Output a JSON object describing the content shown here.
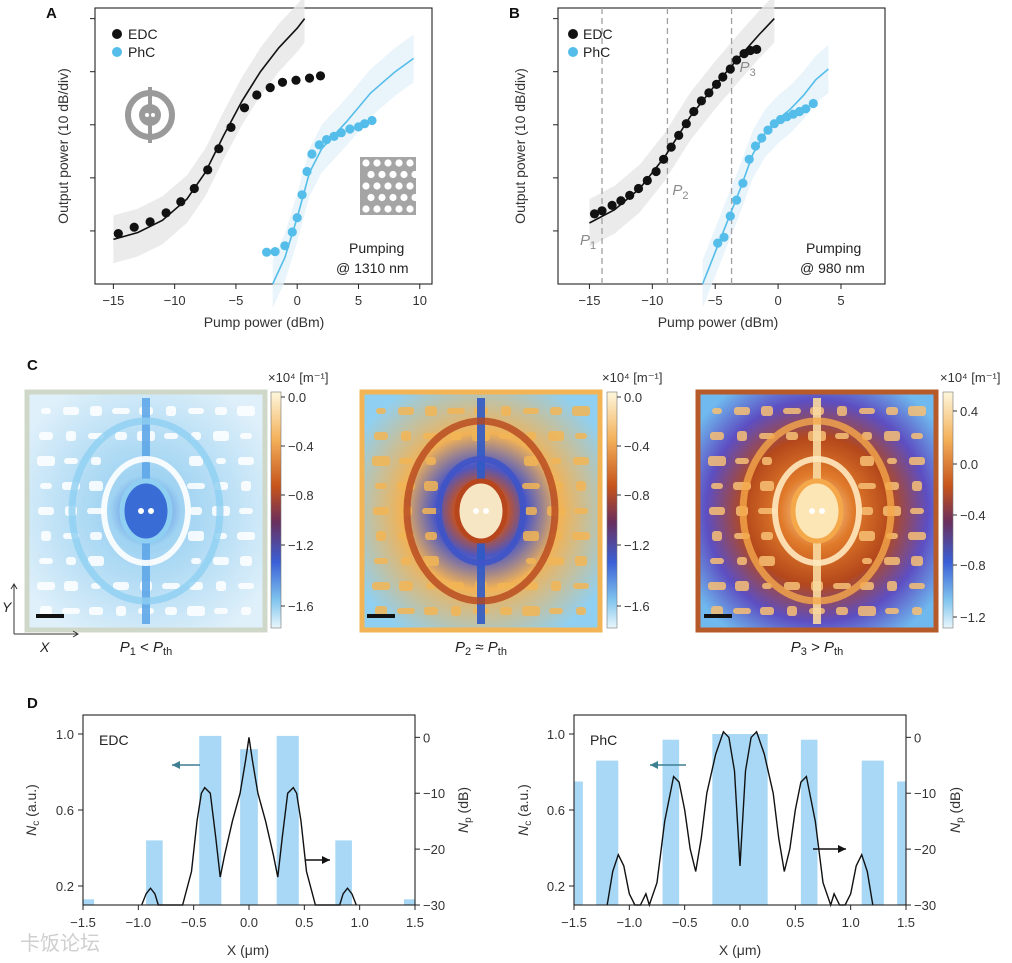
{
  "panels": {
    "a": "A",
    "b": "B",
    "c": "C",
    "d": "D"
  },
  "colors": {
    "edc": "#111111",
    "phc": "#55bde9",
    "np_fill": "#a8d8f6",
    "band": "#e6e6e6",
    "phc_band": "#e3f1fa",
    "marker_line": "#a0a0a0",
    "arrow": "#3f7f92"
  },
  "watermark": "卡饭论坛",
  "chart_data": [
    {
      "id": "A",
      "type": "scatter",
      "xlabel": "Pump power (dBm)",
      "ylabel": "Output power (10 dB/div)",
      "xlim": [
        -16.5,
        11
      ],
      "ylim": [
        0,
        5.2
      ],
      "xticks": [
        -15,
        -10,
        -5,
        0,
        5,
        10
      ],
      "ytick_positions": [
        1,
        2,
        3,
        4,
        5
      ],
      "legend": [
        "EDC",
        "PhC"
      ],
      "legend_position": "top-left",
      "annotation": [
        "Pumping",
        "@ 1310 nm"
      ],
      "series": [
        {
          "name": "EDC",
          "color": "#111111",
          "points": [
            [
              -14.6,
              0.95
            ],
            [
              -13.3,
              1.07
            ],
            [
              -12.0,
              1.17
            ],
            [
              -10.7,
              1.34
            ],
            [
              -9.5,
              1.55
            ],
            [
              -8.4,
              1.8
            ],
            [
              -7.3,
              2.15
            ],
            [
              -6.4,
              2.55
            ],
            [
              -5.4,
              2.95
            ],
            [
              -4.3,
              3.32
            ],
            [
              -3.3,
              3.56
            ],
            [
              -2.2,
              3.7
            ],
            [
              -1.2,
              3.8
            ],
            [
              -0.1,
              3.84
            ],
            [
              1.0,
              3.88
            ],
            [
              1.9,
              3.92
            ]
          ],
          "fit": [
            [
              -15,
              0.84
            ],
            [
              -13,
              0.97
            ],
            [
              -11,
              1.2
            ],
            [
              -9,
              1.6
            ],
            [
              -7.5,
              2.1
            ],
            [
              -6,
              2.8
            ],
            [
              -4.5,
              3.45
            ],
            [
              -3,
              4.0
            ],
            [
              -1.5,
              4.45
            ],
            [
              0,
              4.82
            ],
            [
              0.6,
              5.0
            ]
          ]
        },
        {
          "name": "PhC",
          "color": "#55bde9",
          "points": [
            [
              -2.5,
              0.6
            ],
            [
              -1.8,
              0.61
            ],
            [
              -1.0,
              0.72
            ],
            [
              -0.4,
              0.98
            ],
            [
              0.0,
              1.25
            ],
            [
              0.4,
              1.68
            ],
            [
              0.8,
              2.12
            ],
            [
              1.2,
              2.45
            ],
            [
              1.8,
              2.62
            ],
            [
              2.4,
              2.72
            ],
            [
              3.0,
              2.78
            ],
            [
              3.6,
              2.85
            ],
            [
              4.3,
              2.92
            ],
            [
              5.0,
              2.96
            ],
            [
              5.5,
              3.02
            ],
            [
              6.1,
              3.08
            ]
          ],
          "fit": [
            [
              -2.0,
              0.0
            ],
            [
              -1.0,
              0.5
            ],
            [
              0,
              1.25
            ],
            [
              1,
              2.1
            ],
            [
              2,
              2.55
            ],
            [
              4,
              3.05
            ],
            [
              6,
              3.6
            ],
            [
              8,
              4.0
            ],
            [
              9.5,
              4.25
            ]
          ]
        }
      ]
    },
    {
      "id": "B",
      "type": "scatter",
      "xlabel": "Pump power (dBm)",
      "ylabel": "Output power (10 dB/div)",
      "xlim": [
        -17.5,
        8.5
      ],
      "ylim": [
        0,
        5.2
      ],
      "xticks": [
        -15,
        -10,
        -5,
        0,
        5
      ],
      "ytick_positions": [
        1,
        2,
        3,
        4,
        5
      ],
      "legend": [
        "EDC",
        "PhC"
      ],
      "legend_position": "top-left",
      "annotation": [
        "Pumping",
        "@ 980 nm"
      ],
      "markers": [
        {
          "x": -14.0,
          "label": "P",
          "sub": "1"
        },
        {
          "x": -8.8,
          "label": "P",
          "sub": "2"
        },
        {
          "x": -3.7,
          "label": "P",
          "sub": "3"
        }
      ],
      "series": [
        {
          "name": "EDC",
          "color": "#111111",
          "points": [
            [
              -14.6,
              1.32
            ],
            [
              -14.0,
              1.38
            ],
            [
              -13.2,
              1.48
            ],
            [
              -12.5,
              1.57
            ],
            [
              -11.8,
              1.67
            ],
            [
              -11.1,
              1.8
            ],
            [
              -10.4,
              1.95
            ],
            [
              -9.7,
              2.12
            ],
            [
              -9.1,
              2.35
            ],
            [
              -8.5,
              2.58
            ],
            [
              -7.9,
              2.8
            ],
            [
              -7.3,
              3.02
            ],
            [
              -6.7,
              3.25
            ],
            [
              -6.1,
              3.45
            ],
            [
              -5.5,
              3.6
            ],
            [
              -4.9,
              3.76
            ],
            [
              -4.4,
              3.9
            ],
            [
              -3.8,
              4.05
            ],
            [
              -3.3,
              4.22
            ],
            [
              -2.7,
              4.34
            ],
            [
              -2.2,
              4.4
            ],
            [
              -1.7,
              4.42
            ]
          ],
          "fit": [
            [
              -15,
              1.15
            ],
            [
              -13,
              1.4
            ],
            [
              -11,
              1.8
            ],
            [
              -9,
              2.4
            ],
            [
              -7,
              3.15
            ],
            [
              -5,
              3.75
            ],
            [
              -3,
              4.3
            ],
            [
              -1.5,
              4.7
            ],
            [
              -0.3,
              5.0
            ]
          ]
        },
        {
          "name": "PhC",
          "color": "#55bde9",
          "points": [
            [
              -4.8,
              0.77
            ],
            [
              -4.3,
              0.88
            ],
            [
              -3.8,
              1.28
            ],
            [
              -3.3,
              1.58
            ],
            [
              -2.8,
              1.9
            ],
            [
              -2.3,
              2.35
            ],
            [
              -1.8,
              2.6
            ],
            [
              -1.3,
              2.75
            ],
            [
              -0.8,
              2.9
            ],
            [
              -0.3,
              3.02
            ],
            [
              0.2,
              3.1
            ],
            [
              0.7,
              3.15
            ],
            [
              1.2,
              3.2
            ],
            [
              1.7,
              3.25
            ],
            [
              2.2,
              3.3
            ],
            [
              2.8,
              3.4
            ]
          ],
          "fit": [
            [
              -6,
              0.0
            ],
            [
              -5,
              0.6
            ],
            [
              -4,
              1.2
            ],
            [
              -3,
              1.8
            ],
            [
              -2,
              2.45
            ],
            [
              -1,
              2.85
            ],
            [
              0,
              3.1
            ],
            [
              1,
              3.3
            ],
            [
              2,
              3.55
            ],
            [
              3,
              3.85
            ],
            [
              4,
              4.05
            ]
          ]
        }
      ]
    },
    {
      "id": "C",
      "type": "heatmap",
      "colorbar_unit": "×10⁴ [m⁻¹]",
      "axis_labels": [
        "Y",
        "X"
      ],
      "maps": [
        {
          "caption_main": "P",
          "caption_sub": "1",
          "caption_rel": " < ",
          "caption_main2": "P",
          "caption_sub2": "th",
          "cbar_ticks": [
            "0.0",
            "-0.4",
            "-0.8",
            "-1.2",
            "-1.6"
          ]
        },
        {
          "caption_main": "P",
          "caption_sub": "2",
          "caption_rel": " ≈ ",
          "caption_main2": "P",
          "caption_sub2": "th",
          "cbar_ticks": [
            "0.0",
            "-0.4",
            "-0.8",
            "-1.2",
            "-1.6"
          ]
        },
        {
          "caption_main": "P",
          "caption_sub": "3",
          "caption_rel": " > ",
          "caption_main2": "P",
          "caption_sub2": "th",
          "cbar_ticks": [
            "0.4",
            "0.0",
            "-0.4",
            "-0.8",
            "-1.2"
          ]
        }
      ]
    },
    {
      "id": "D-EDC",
      "type": "line",
      "label": "EDC",
      "xlabel": "X (μm)",
      "ylabel_left": "N",
      "ylabel_left_sub": "c",
      "ylabel_left_unit": " (a.u.)",
      "ylabel_right": "N",
      "ylabel_right_sub": "p",
      "ylabel_right_unit": " (dB)",
      "xlim": [
        -1.5,
        1.5
      ],
      "ylim_left": [
        0.1,
        1.1
      ],
      "ylim_right": [
        -30,
        4
      ],
      "xticks": [
        "-1.5",
        "-1.0",
        "-0.5",
        "0.0",
        "0.5",
        "1.0",
        "1.5"
      ],
      "yticks_left": [
        "0.2",
        "0.6",
        "1.0"
      ],
      "yticks_right": [
        "0",
        "-10",
        "-20",
        "-30"
      ],
      "nc_bands": [
        [
          -1.5,
          -1.4,
          0.13
        ],
        [
          -0.93,
          -0.78,
          0.44
        ],
        [
          -0.45,
          -0.25,
          0.99
        ],
        [
          -0.08,
          0.08,
          0.92
        ],
        [
          0.25,
          0.45,
          0.99
        ],
        [
          0.78,
          0.93,
          0.44
        ],
        [
          1.4,
          1.5,
          0.13
        ]
      ],
      "np_curve": [
        [
          -0.97,
          -30
        ],
        [
          -0.93,
          -28
        ],
        [
          -0.89,
          -27
        ],
        [
          -0.85,
          -28
        ],
        [
          -0.82,
          -30
        ],
        [
          -0.6,
          -30
        ],
        [
          -0.52,
          -24
        ],
        [
          -0.47,
          -15
        ],
        [
          -0.43,
          -10
        ],
        [
          -0.4,
          -9
        ],
        [
          -0.35,
          -10
        ],
        [
          -0.3,
          -18
        ],
        [
          -0.26,
          -25
        ],
        [
          -0.22,
          -21
        ],
        [
          -0.15,
          -15
        ],
        [
          -0.08,
          -10
        ],
        [
          -0.03,
          -4
        ],
        [
          0.0,
          0
        ],
        [
          0.03,
          -4
        ],
        [
          0.08,
          -10
        ],
        [
          0.15,
          -15
        ],
        [
          0.22,
          -21
        ],
        [
          0.26,
          -25
        ],
        [
          0.3,
          -18
        ],
        [
          0.35,
          -10
        ],
        [
          0.4,
          -9
        ],
        [
          0.43,
          -10
        ],
        [
          0.47,
          -15
        ],
        [
          0.52,
          -24
        ],
        [
          0.6,
          -30
        ],
        [
          0.82,
          -30
        ],
        [
          0.85,
          -28
        ],
        [
          0.89,
          -27
        ],
        [
          0.93,
          -28
        ],
        [
          0.97,
          -30
        ]
      ],
      "arrows": [
        "left",
        "right"
      ]
    },
    {
      "id": "D-PhC",
      "type": "line",
      "label": "PhC",
      "xlabel": "X (μm)",
      "ylabel_left": "N",
      "ylabel_left_sub": "c",
      "ylabel_left_unit": " (a.u.)",
      "ylabel_right": "N",
      "ylabel_right_sub": "p",
      "ylabel_right_unit": " (dB)",
      "xlim": [
        -1.5,
        1.5
      ],
      "ylim_left": [
        0.1,
        1.1
      ],
      "ylim_right": [
        -30,
        4
      ],
      "xticks": [
        "-1.5",
        "-1.0",
        "-0.5",
        "0.0",
        "0.5",
        "1.0",
        "1.5"
      ],
      "yticks_left": [
        "0.2",
        "0.6",
        "1.0"
      ],
      "yticks_right": [
        "0",
        "-10",
        "-20",
        "-30"
      ],
      "nc_bands": [
        [
          -1.5,
          -1.42,
          0.75
        ],
        [
          -1.3,
          -1.1,
          0.86
        ],
        [
          -0.7,
          -0.55,
          0.97
        ],
        [
          -0.25,
          0.25,
          1.0
        ],
        [
          0.55,
          0.7,
          0.97
        ],
        [
          1.1,
          1.3,
          0.86
        ],
        [
          1.42,
          1.5,
          0.75
        ]
      ],
      "np_curve": [
        [
          -1.2,
          -30
        ],
        [
          -1.15,
          -24
        ],
        [
          -1.1,
          -21
        ],
        [
          -1.05,
          -23
        ],
        [
          -1.0,
          -28
        ],
        [
          -0.95,
          -30
        ],
        [
          -0.9,
          -30
        ],
        [
          -0.85,
          -28
        ],
        [
          -0.82,
          -30
        ],
        [
          -0.75,
          -26
        ],
        [
          -0.68,
          -15
        ],
        [
          -0.6,
          -7
        ],
        [
          -0.55,
          -8
        ],
        [
          -0.5,
          -13
        ],
        [
          -0.45,
          -20
        ],
        [
          -0.4,
          -24
        ],
        [
          -0.35,
          -18
        ],
        [
          -0.3,
          -10
        ],
        [
          -0.22,
          -3
        ],
        [
          -0.15,
          1
        ],
        [
          -0.1,
          0
        ],
        [
          -0.05,
          -6
        ],
        [
          0.0,
          -23
        ],
        [
          0.05,
          -6
        ],
        [
          0.1,
          0
        ],
        [
          0.15,
          1
        ],
        [
          0.22,
          -3
        ],
        [
          0.3,
          -10
        ],
        [
          0.35,
          -18
        ],
        [
          0.4,
          -24
        ],
        [
          0.45,
          -20
        ],
        [
          0.5,
          -13
        ],
        [
          0.55,
          -8
        ],
        [
          0.6,
          -7
        ],
        [
          0.68,
          -15
        ],
        [
          0.75,
          -26
        ],
        [
          0.82,
          -30
        ],
        [
          0.85,
          -28
        ],
        [
          0.9,
          -30
        ],
        [
          0.95,
          -30
        ],
        [
          1.0,
          -28
        ],
        [
          1.05,
          -23
        ],
        [
          1.1,
          -21
        ],
        [
          1.15,
          -24
        ],
        [
          1.2,
          -30
        ]
      ],
      "arrows": [
        "left",
        "right"
      ]
    }
  ]
}
